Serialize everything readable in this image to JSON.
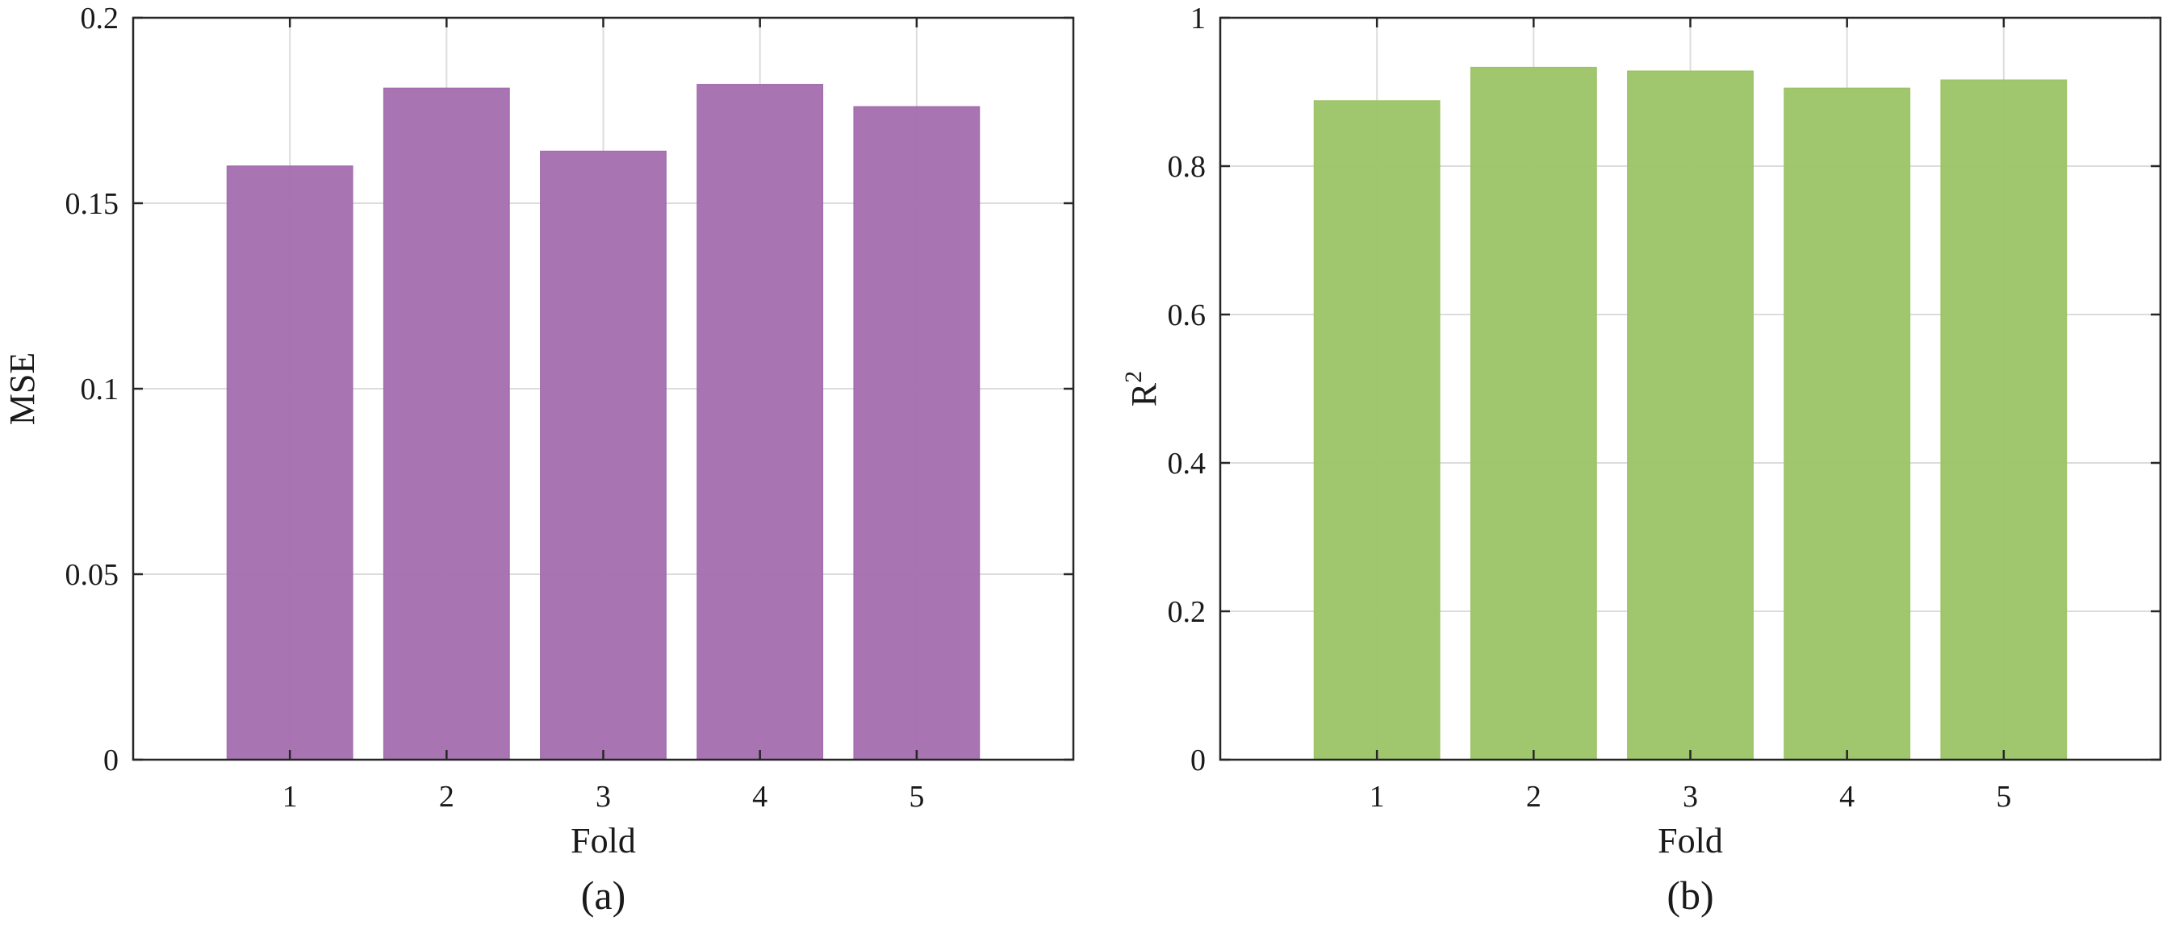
{
  "chart_data": [
    {
      "type": "bar",
      "panel_label": "(a)",
      "categories": [
        "1",
        "2",
        "3",
        "4",
        "5"
      ],
      "values": [
        0.16,
        0.181,
        0.164,
        0.182,
        0.176
      ],
      "title": "",
      "xlabel": "Fold",
      "ylabel": "MSE",
      "ylabel_superscript": "",
      "ylim": [
        0,
        0.2
      ],
      "yticks": [
        "0",
        "0.05",
        "0.1",
        "0.15",
        "0.2"
      ],
      "ytick_values": [
        0,
        0.05,
        0.1,
        0.15,
        0.2
      ],
      "x_range": [
        0,
        6
      ],
      "grid": true,
      "bar_color": "#A36DAE"
    },
    {
      "type": "bar",
      "panel_label": "(b)",
      "categories": [
        "1",
        "2",
        "3",
        "4",
        "5"
      ],
      "values": [
        0.888,
        0.933,
        0.928,
        0.905,
        0.916
      ],
      "title": "",
      "xlabel": "Fold",
      "ylabel": "R",
      "ylabel_superscript": "2",
      "ylim": [
        0,
        1
      ],
      "yticks": [
        "0",
        "0.2",
        "0.4",
        "0.6",
        "0.8",
        "1"
      ],
      "ytick_values": [
        0,
        0.2,
        0.4,
        0.6,
        0.8,
        1
      ],
      "x_range": [
        0,
        6
      ],
      "grid": true,
      "bar_color": "#9BC466"
    }
  ]
}
